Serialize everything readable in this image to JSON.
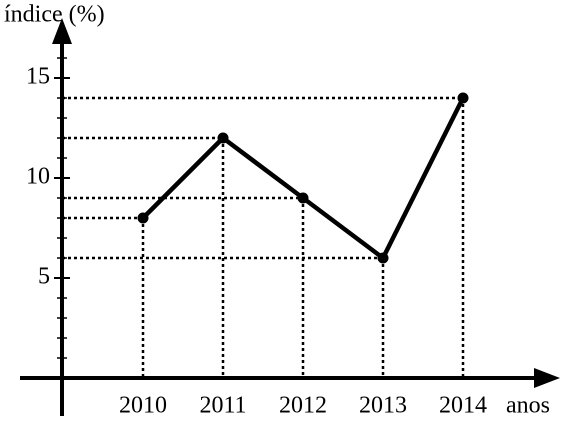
{
  "chart_data": {
    "type": "line",
    "y_label": "índice (%)",
    "x_label": "anos",
    "categories": [
      "2010",
      "2011",
      "2012",
      "2013",
      "2014"
    ],
    "values": [
      8,
      12,
      9,
      6,
      14
    ],
    "color": "#000000",
    "ylim": [
      0,
      18
    ],
    "yticks": [
      5,
      10,
      15
    ],
    "minor_yticks": [
      1,
      2,
      3,
      4,
      6,
      7,
      8,
      9,
      11,
      12,
      13,
      14,
      16,
      17
    ],
    "guides": true
  }
}
